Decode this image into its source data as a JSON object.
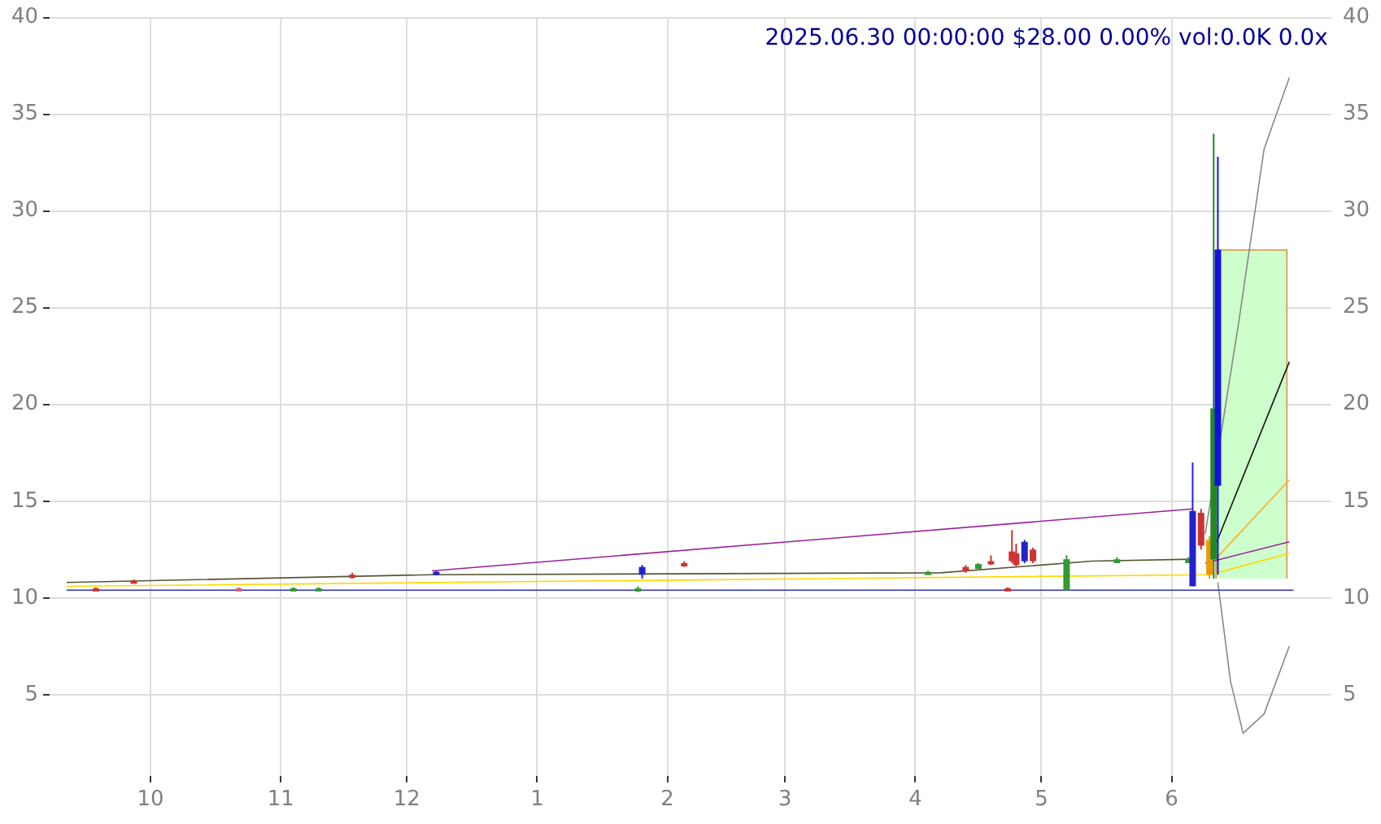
{
  "chart_data": {
    "type": "candlestick",
    "title": "2025.06.30 00:00:00 $28.00 0.00% vol:0.0K 0.0x",
    "x": [
      "2024-09-18",
      "2024-09-27",
      "2024-10-22",
      "2024-11-04",
      "2024-11-10",
      "2024-11-18",
      "2024-12-08",
      "2025-01-25",
      "2025-01-26",
      "2025-02-05",
      "2025-04-04",
      "2025-04-13",
      "2025-04-16",
      "2025-04-19",
      "2025-04-23",
      "2025-04-24",
      "2025-04-25",
      "2025-04-27",
      "2025-04-29",
      "2025-05-07",
      "2025-05-19",
      "2025-06-05",
      "2025-06-06",
      "2025-06-08",
      "2025-06-10",
      "2025-06-11",
      "2025-06-12"
    ],
    "ohlc": [
      [
        10.5,
        10.55,
        10.4,
        10.45
      ],
      [
        10.9,
        10.95,
        10.8,
        10.85
      ],
      [
        10.5,
        10.55,
        10.4,
        10.45
      ],
      [
        10.4,
        10.55,
        10.4,
        10.5
      ],
      [
        10.4,
        10.55,
        10.4,
        10.5
      ],
      [
        11.2,
        11.3,
        11.0,
        11.05
      ],
      [
        11.2,
        11.4,
        11.2,
        11.35
      ],
      [
        10.4,
        10.6,
        10.3,
        10.5
      ],
      [
        11.2,
        11.7,
        11.0,
        11.6
      ],
      [
        11.8,
        11.9,
        11.6,
        11.65
      ],
      [
        11.2,
        11.4,
        11.2,
        11.35
      ],
      [
        11.6,
        11.7,
        11.3,
        11.4
      ],
      [
        11.5,
        11.8,
        11.5,
        11.75
      ],
      [
        11.9,
        12.2,
        11.7,
        11.75
      ],
      [
        10.5,
        10.55,
        10.4,
        10.45
      ],
      [
        12.4,
        13.5,
        11.8,
        11.9
      ],
      [
        12.3,
        12.8,
        11.6,
        11.7
      ],
      [
        11.9,
        13.0,
        11.8,
        12.9
      ],
      [
        12.5,
        12.6,
        11.8,
        11.9
      ],
      [
        10.4,
        12.2,
        10.4,
        12.0
      ],
      [
        11.8,
        12.1,
        11.8,
        12.0
      ],
      [
        11.8,
        12.1,
        11.8,
        12.0
      ],
      [
        10.6,
        17.0,
        10.6,
        14.5
      ],
      [
        14.4,
        14.6,
        12.5,
        12.7
      ],
      [
        11.2,
        13.2,
        11.0,
        13.0
      ],
      [
        12.0,
        34.0,
        11.0,
        19.8
      ],
      [
        15.8,
        32.8,
        11.2,
        28.0
      ]
    ],
    "colors": [
      "#cc3333",
      "#cc3333",
      "#cc6677",
      "#339933",
      "#339933",
      "#cc3333",
      "#2222cc",
      "#339933",
      "#2222cc",
      "#cc3333",
      "#339933",
      "#cc3333",
      "#339933",
      "#cc3333",
      "#cc3333",
      "#cc3333",
      "#cc3333",
      "#2222cc",
      "#cc3333",
      "#339933",
      "#339933",
      "#339933",
      "#2222cc",
      "#cc3333",
      "#ee9900",
      "#228822",
      "#1111dd"
    ],
    "series": [
      {
        "type": "bar",
        "x": [
          "2025-06-20"
        ],
        "base": [
          11
        ],
        "values": [
          17
        ],
        "color": "#ccffcc"
      },
      {
        "type": "line",
        "x": [
          "2024-09-11",
          "2025-06-30"
        ],
        "values": [
          10.4,
          10.4
        ],
        "color": "#3333bb"
      },
      {
        "type": "line",
        "x": [
          "2024-09-11",
          "2025-06-10",
          "2025-06-29"
        ],
        "values": [
          10.6,
          11.2,
          12.3
        ],
        "color": "#ffd700"
      },
      {
        "type": "line",
        "x": [
          "2024-09-11",
          "2024-12-07",
          "2025-04-07",
          "2025-05-13",
          "2025-06-06"
        ],
        "values": [
          10.8,
          11.2,
          11.3,
          11.9,
          12.0
        ],
        "color": "#555533"
      },
      {
        "type": "line",
        "x": [
          "2024-12-07",
          "2025-06-06"
        ],
        "values": [
          11.4,
          14.6
        ],
        "color": "#992299"
      },
      {
        "type": "line",
        "x": [
          "2025-06-09",
          "2025-06-29"
        ],
        "values": [
          11.8,
          12.9
        ],
        "color": "#992299"
      },
      {
        "type": "line",
        "x": [
          "2025-06-11",
          "2025-06-29"
        ],
        "values": [
          12.5,
          22.2
        ],
        "color": "#111111"
      },
      {
        "type": "line",
        "x": [
          "2025-06-11",
          "2025-06-29"
        ],
        "values": [
          11.9,
          16.1
        ],
        "color": "#ffaa22"
      },
      {
        "type": "line",
        "x": [
          "2025-06-09",
          "2025-06-17",
          "2025-06-23",
          "2025-06-29"
        ],
        "values": [
          13.3,
          24.3,
          33.2,
          36.9
        ],
        "color": "#888888"
      },
      {
        "type": "line",
        "x": [
          "2025-06-12",
          "2025-06-15",
          "2025-06-18",
          "2025-06-23",
          "2025-06-29"
        ],
        "values": [
          10.8,
          5.7,
          3.0,
          4.0,
          7.5
        ],
        "color": "#888888"
      }
    ],
    "xlim": [
      "2024-09-07",
      "2025-07-09"
    ],
    "xticks": [
      {
        "value": "2024-10-01",
        "label": "10"
      },
      {
        "value": "2024-11-01",
        "label": "11"
      },
      {
        "value": "2024-12-01",
        "label": "12"
      },
      {
        "value": "2025-01-01",
        "label": "1"
      },
      {
        "value": "2025-02-01",
        "label": "2"
      },
      {
        "value": "2025-03-01",
        "label": "3"
      },
      {
        "value": "2025-04-01",
        "label": "4"
      },
      {
        "value": "2025-05-01",
        "label": "5"
      },
      {
        "value": "2025-06-01",
        "label": "6"
      }
    ],
    "ylim": [
      0.8,
      40
    ],
    "yticks": [
      5,
      10,
      15,
      20,
      25,
      30,
      35,
      40
    ],
    "y2lim": [
      0.8,
      40
    ],
    "y2ticks": [
      5,
      10,
      15,
      20,
      25,
      30,
      35,
      40
    ],
    "grid": true,
    "marker": "none",
    "line_style": "solid"
  }
}
